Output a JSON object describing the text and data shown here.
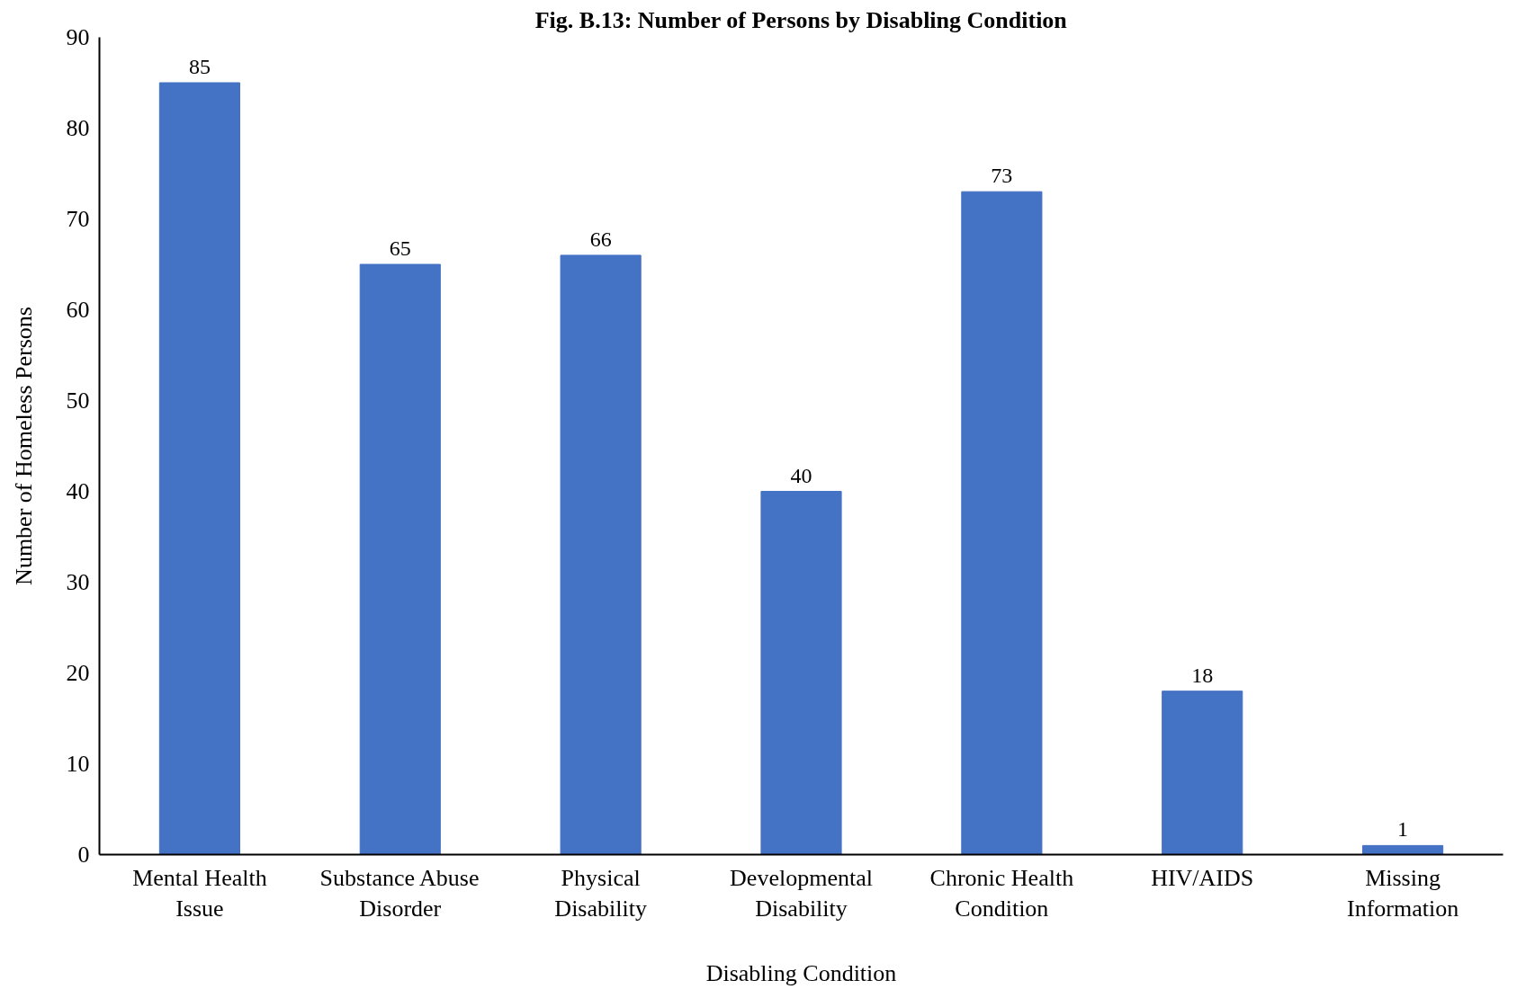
{
  "chart_data": {
    "type": "bar",
    "title": "Fig. B.13: Number of Persons by Disabling Condition",
    "xlabel": "Disabling Condition",
    "ylabel": "Number of Homeless Persons",
    "categories": [
      "Mental Health Issue",
      "Substance Abuse Disorder",
      "Physical Disability",
      "Developmental Disability",
      "Chronic Health Condition",
      "HIV/AIDS",
      "Missing Information"
    ],
    "values": [
      85,
      65,
      66,
      40,
      73,
      18,
      1
    ],
    "color": "#4472c4",
    "ylim": [
      0,
      90
    ],
    "yticks": [
      0,
      10,
      20,
      30,
      40,
      50,
      60,
      70,
      80,
      90
    ],
    "grid": false,
    "data_labels": true
  }
}
